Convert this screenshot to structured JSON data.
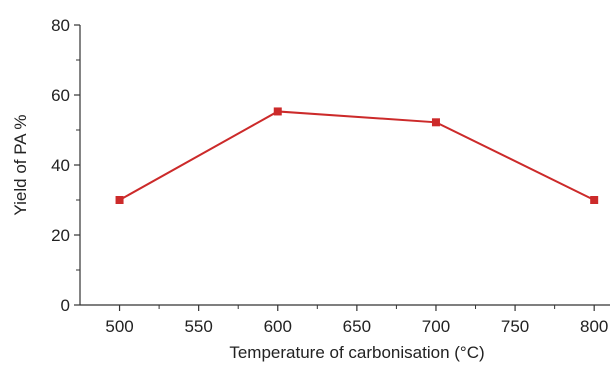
{
  "chart_data": {
    "type": "line",
    "title": "",
    "xlabel": "Temperature of carbonisation (°C)",
    "ylabel": "Yield of PA %",
    "xlim": [
      475,
      810
    ],
    "ylim": [
      0,
      80
    ],
    "x_ticks": [
      500,
      550,
      600,
      650,
      700,
      750,
      800
    ],
    "y_ticks": [
      0,
      20,
      40,
      60,
      80
    ],
    "grid": false,
    "legend": "none",
    "series": [
      {
        "color": "#cc2a2a",
        "marker": "square",
        "points": [
          {
            "x": 500,
            "y": 30
          },
          {
            "x": 600,
            "y": 55.3
          },
          {
            "x": 700,
            "y": 52.2
          },
          {
            "x": 800,
            "y": 30
          }
        ]
      }
    ]
  }
}
